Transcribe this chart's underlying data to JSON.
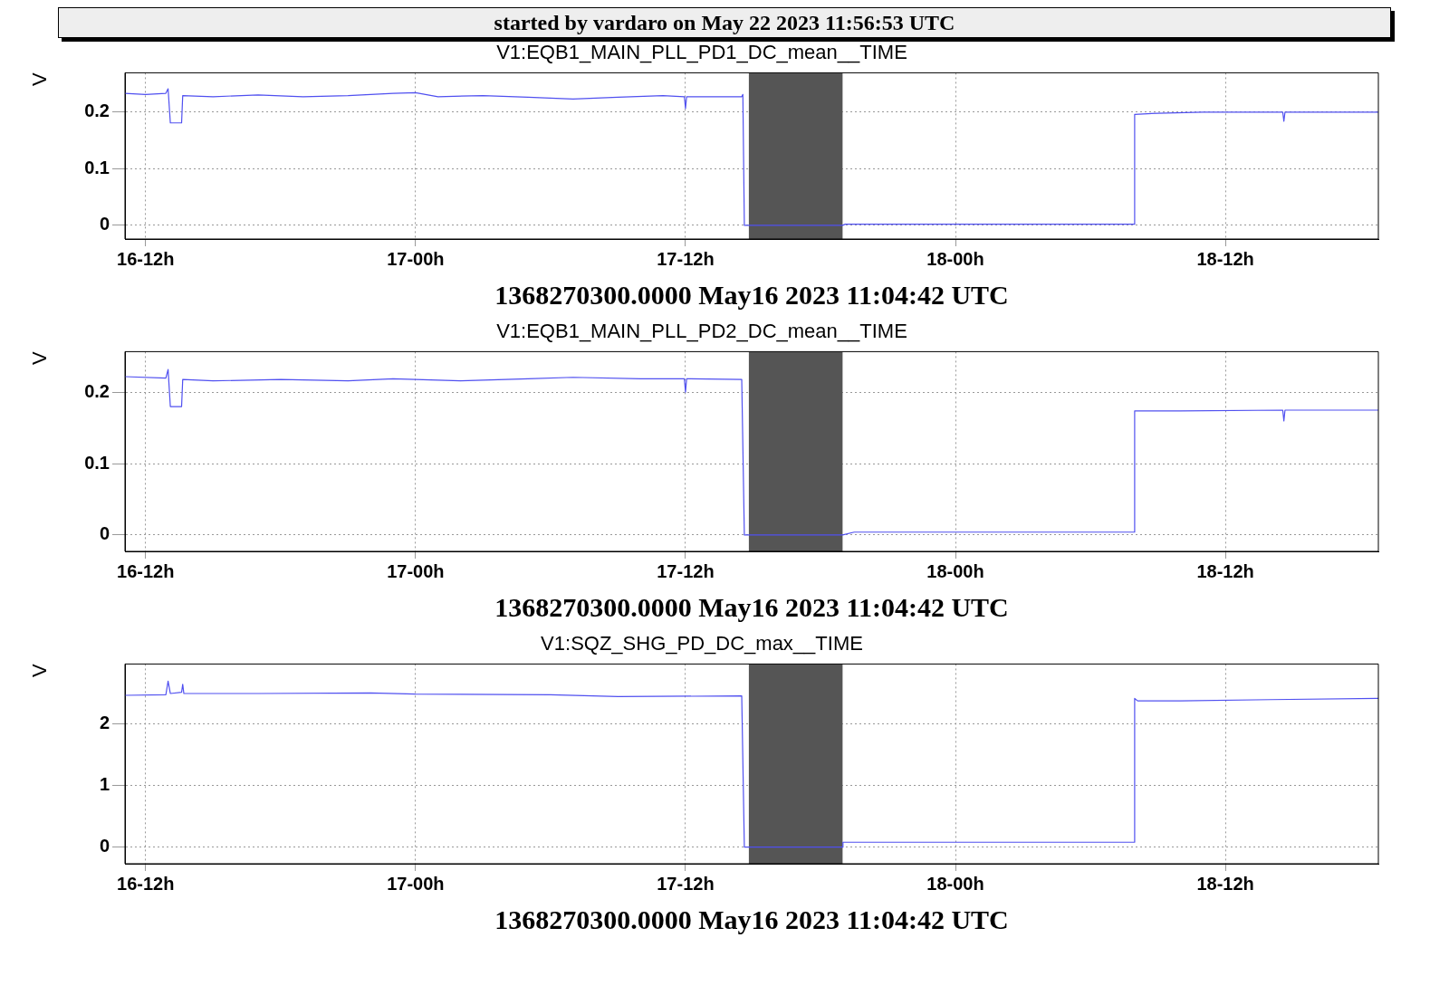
{
  "chart_data": [
    {
      "type": "line",
      "title": "V1:EQB1_MAIN_PLL_PD1_DC_mean__TIME",
      "xlabel": "1368270300.0000 May16 2023 11:04:42 UTC",
      "ylabel": "V",
      "annotations": [
        "started by vardaro on May 22 2023 11:56:53 UTC"
      ],
      "grid": true,
      "legend": false,
      "marker": "none",
      "line_style": "solid",
      "xlim": [
        "2023-05-16T11:05",
        "2023-05-18T18:48"
      ],
      "xticks": [
        {
          "value": "2023-05-16T12:00",
          "label": "16-12h"
        },
        {
          "value": "2023-05-17T00:00",
          "label": "17-00h"
        },
        {
          "value": "2023-05-17T12:00",
          "label": "17-12h"
        },
        {
          "value": "2023-05-18T00:00",
          "label": "18-00h"
        },
        {
          "value": "2023-05-18T12:00",
          "label": "18-12h"
        }
      ],
      "ylim": [
        -0.024,
        0.268
      ],
      "yticks": [
        0,
        0.1,
        0.2
      ],
      "bands": [
        {
          "axis": "x",
          "from": "2023-05-17T14:49",
          "to": "2023-05-17T18:59",
          "color": "#555555"
        }
      ],
      "series": [
        {
          "color": "#5050f0",
          "x": [
            "2023-05-16T11:05",
            "2023-05-16T12:00",
            "2023-05-16T12:54",
            "2023-05-16T13:00",
            "2023-05-16T13:06",
            "2023-05-16T13:36",
            "2023-05-16T13:39",
            "2023-05-16T15:00",
            "2023-05-16T17:00",
            "2023-05-16T19:00",
            "2023-05-16T21:00",
            "2023-05-16T23:00",
            "2023-05-17T00:00",
            "2023-05-17T01:00",
            "2023-05-17T03:00",
            "2023-05-17T05:00",
            "2023-05-17T07:00",
            "2023-05-17T09:00",
            "2023-05-17T11:00",
            "2023-05-17T11:57",
            "2023-05-17T12:00",
            "2023-05-17T12:03",
            "2023-05-17T13:00",
            "2023-05-17T14:30",
            "2023-05-17T14:33",
            "2023-05-17T14:37",
            "2023-05-17T18:59",
            "2023-05-17T19:06",
            "2023-05-18T07:57",
            "2023-05-18T07:58",
            "2023-05-18T09:00",
            "2023-05-18T11:00",
            "2023-05-18T14:33",
            "2023-05-18T14:36",
            "2023-05-18T14:39",
            "2023-05-18T18:48"
          ],
          "values": [
            0.232,
            0.23,
            0.232,
            0.24,
            0.18,
            0.18,
            0.228,
            0.226,
            0.229,
            0.226,
            0.228,
            0.232,
            0.233,
            0.226,
            0.228,
            0.225,
            0.222,
            0.225,
            0.228,
            0.226,
            0.205,
            0.226,
            0.226,
            0.226,
            0.23,
            0.0,
            0.0,
            0.002,
            0.002,
            0.195,
            0.197,
            0.199,
            0.199,
            0.183,
            0.199,
            0.199
          ]
        }
      ]
    },
    {
      "type": "line",
      "title": "V1:EQB1_MAIN_PLL_PD2_DC_mean__TIME",
      "xlabel": "1368270300.0000 May16 2023 11:04:42 UTC",
      "ylabel": "V",
      "grid": true,
      "legend": false,
      "marker": "none",
      "line_style": "solid",
      "xlim": [
        "2023-05-16T11:05",
        "2023-05-18T18:48"
      ],
      "xticks": [
        {
          "value": "2023-05-16T12:00",
          "label": "16-12h"
        },
        {
          "value": "2023-05-17T00:00",
          "label": "17-00h"
        },
        {
          "value": "2023-05-17T12:00",
          "label": "17-12h"
        },
        {
          "value": "2023-05-18T00:00",
          "label": "18-00h"
        },
        {
          "value": "2023-05-18T12:00",
          "label": "18-12h"
        }
      ],
      "ylim": [
        -0.023,
        0.257
      ],
      "yticks": [
        0,
        0.1,
        0.2
      ],
      "bands": [
        {
          "axis": "x",
          "from": "2023-05-17T14:49",
          "to": "2023-05-17T18:59",
          "color": "#555555"
        }
      ],
      "series": [
        {
          "color": "#5050f0",
          "x": [
            "2023-05-16T11:05",
            "2023-05-16T12:54",
            "2023-05-16T13:00",
            "2023-05-16T13:06",
            "2023-05-16T13:36",
            "2023-05-16T13:39",
            "2023-05-16T15:00",
            "2023-05-16T18:00",
            "2023-05-16T21:00",
            "2023-05-16T23:00",
            "2023-05-17T02:00",
            "2023-05-17T05:00",
            "2023-05-17T07:00",
            "2023-05-17T10:00",
            "2023-05-17T11:57",
            "2023-05-17T12:00",
            "2023-05-17T12:03",
            "2023-05-17T14:30",
            "2023-05-17T14:37",
            "2023-05-17T18:59",
            "2023-05-17T19:30",
            "2023-05-18T07:57",
            "2023-05-18T07:58",
            "2023-05-18T10:00",
            "2023-05-18T14:33",
            "2023-05-18T14:36",
            "2023-05-18T14:39",
            "2023-05-18T18:48"
          ],
          "values": [
            0.222,
            0.22,
            0.232,
            0.18,
            0.18,
            0.218,
            0.216,
            0.218,
            0.216,
            0.219,
            0.216,
            0.219,
            0.221,
            0.219,
            0.219,
            0.2,
            0.219,
            0.218,
            0.0,
            0.0,
            0.004,
            0.004,
            0.174,
            0.174,
            0.175,
            0.16,
            0.175,
            0.175
          ]
        }
      ]
    },
    {
      "type": "line",
      "title": "V1:SQZ_SHG_PD_DC_max__TIME",
      "xlabel": "1368270300.0000 May16 2023 11:04:42 UTC",
      "ylabel": "V",
      "grid": true,
      "legend": false,
      "marker": "none",
      "line_style": "solid",
      "xlim": [
        "2023-05-16T11:05",
        "2023-05-18T18:48"
      ],
      "xticks": [
        {
          "value": "2023-05-16T12:00",
          "label": "16-12h"
        },
        {
          "value": "2023-05-17T00:00",
          "label": "17-00h"
        },
        {
          "value": "2023-05-17T12:00",
          "label": "17-12h"
        },
        {
          "value": "2023-05-18T00:00",
          "label": "18-00h"
        },
        {
          "value": "2023-05-18T12:00",
          "label": "18-12h"
        }
      ],
      "ylim": [
        -0.27,
        2.98
      ],
      "yticks": [
        0,
        1,
        2
      ],
      "bands": [
        {
          "axis": "x",
          "from": "2023-05-17T14:49",
          "to": "2023-05-17T18:59",
          "color": "#555555"
        }
      ],
      "series": [
        {
          "color": "#5050f0",
          "x": [
            "2023-05-16T11:05",
            "2023-05-16T12:54",
            "2023-05-16T13:00",
            "2023-05-16T13:06",
            "2023-05-16T13:36",
            "2023-05-16T13:39",
            "2023-05-16T13:42",
            "2023-05-16T17:00",
            "2023-05-16T22:00",
            "2023-05-17T00:00",
            "2023-05-17T06:00",
            "2023-05-17T09:00",
            "2023-05-17T14:30",
            "2023-05-17T14:37",
            "2023-05-17T18:59",
            "2023-05-17T19:00",
            "2023-05-18T07:57",
            "2023-05-18T07:58",
            "2023-05-18T08:06",
            "2023-05-18T10:00",
            "2023-05-18T14:00",
            "2023-05-18T18:48"
          ],
          "values": [
            2.47,
            2.48,
            2.7,
            2.5,
            2.52,
            2.65,
            2.5,
            2.5,
            2.51,
            2.49,
            2.48,
            2.45,
            2.46,
            0.0,
            0.0,
            0.08,
            0.08,
            2.42,
            2.38,
            2.38,
            2.4,
            2.42
          ]
        }
      ]
    }
  ]
}
